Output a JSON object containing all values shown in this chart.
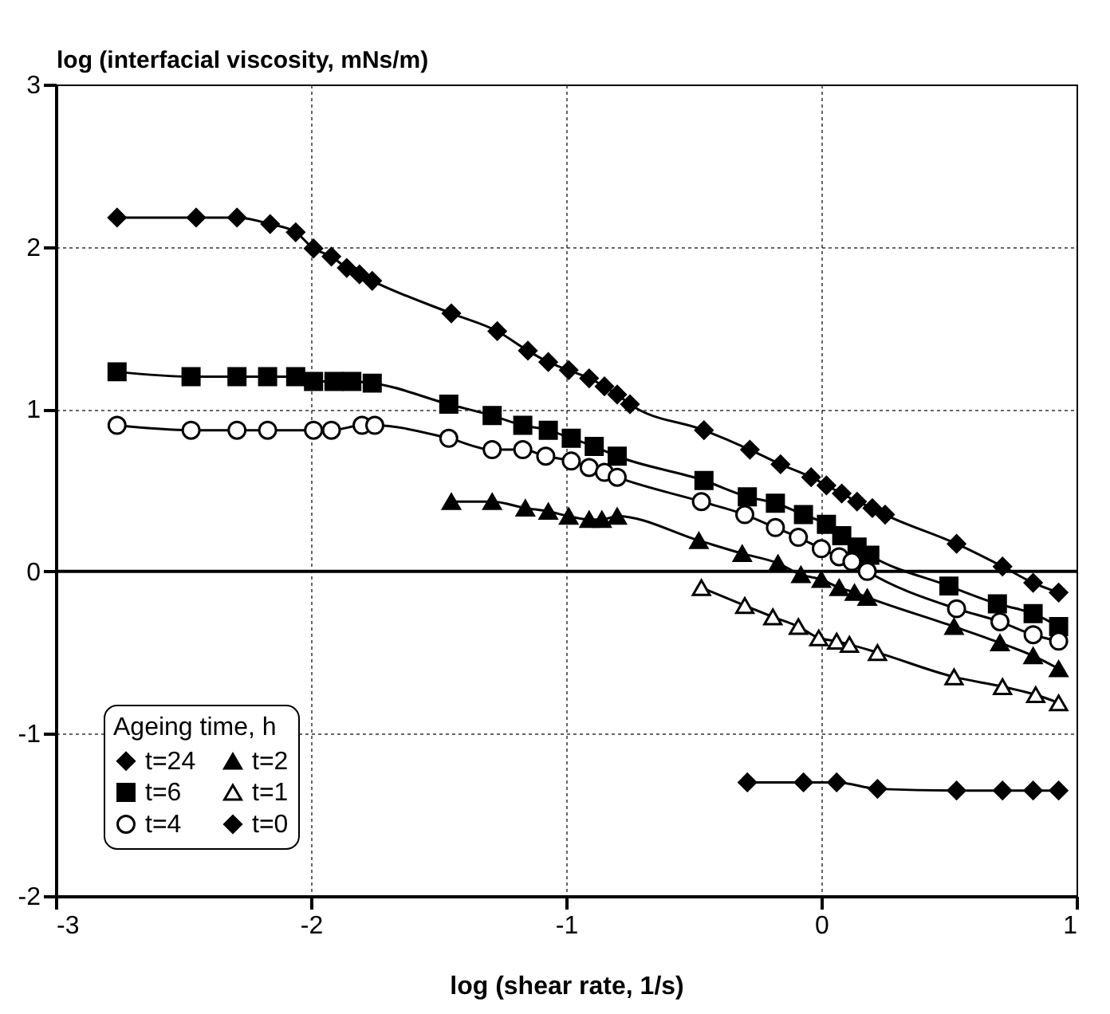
{
  "chart_data": {
    "type": "line",
    "xlabel": "log (shear rate, 1/s)",
    "ylabel": "log (interfacial viscosity, mNs/m)",
    "legend_title": "Ageing time, h",
    "xlim": [
      -3,
      1
    ],
    "xticks": [
      -3,
      -2,
      -1,
      0,
      1
    ],
    "ylim": [
      -2,
      3
    ],
    "yticks": [
      -2,
      -1,
      0,
      1,
      2,
      3
    ],
    "grid": true,
    "legend": "bottom left",
    "line_style": "solid",
    "ref_lines": [
      {
        "axis": "y",
        "value": 0,
        "color": "#000000",
        "line_style": "solid"
      }
    ],
    "series": [
      {
        "name": "t=24",
        "color": "#000000",
        "marker": "diamond",
        "x": [
          -2.76,
          -2.45,
          -2.29,
          -2.16,
          -2.06,
          -1.99,
          -1.92,
          -1.86,
          -1.81,
          -1.76,
          -1.45,
          -1.27,
          -1.15,
          -1.07,
          -0.99,
          -0.91,
          -0.85,
          -0.8,
          -0.75,
          -0.46,
          -0.28,
          -0.16,
          -0.04,
          0.02,
          0.08,
          0.14,
          0.2,
          0.25,
          0.53,
          0.71,
          0.83,
          0.93
        ],
        "values": [
          2.18,
          2.18,
          2.18,
          2.14,
          2.09,
          1.99,
          1.94,
          1.87,
          1.83,
          1.79,
          1.59,
          1.48,
          1.36,
          1.29,
          1.24,
          1.19,
          1.14,
          1.09,
          1.03,
          0.87,
          0.75,
          0.66,
          0.58,
          0.53,
          0.48,
          0.43,
          0.39,
          0.35,
          0.17,
          0.03,
          -0.07,
          -0.13
        ]
      },
      {
        "name": "t=6",
        "color": "#000000",
        "marker": "square",
        "x": [
          -2.76,
          -2.47,
          -2.29,
          -2.17,
          -2.06,
          -1.99,
          -1.91,
          -1.84,
          -1.76,
          -1.46,
          -1.29,
          -1.17,
          -1.07,
          -0.98,
          -0.89,
          -0.8,
          -0.46,
          -0.29,
          -0.18,
          -0.07,
          0.02,
          0.08,
          0.14,
          0.19,
          0.5,
          0.69,
          0.83,
          0.93
        ],
        "values": [
          1.23,
          1.2,
          1.2,
          1.2,
          1.2,
          1.17,
          1.17,
          1.17,
          1.16,
          1.03,
          0.96,
          0.9,
          0.87,
          0.82,
          0.77,
          0.71,
          0.56,
          0.46,
          0.42,
          0.35,
          0.29,
          0.22,
          0.15,
          0.1,
          -0.09,
          -0.2,
          -0.26,
          -0.34
        ]
      },
      {
        "name": "t=4",
        "color": "#000000",
        "marker": "circle",
        "x": [
          -2.76,
          -2.47,
          -2.29,
          -2.17,
          -1.99,
          -1.92,
          -1.8,
          -1.75,
          -1.46,
          -1.29,
          -1.17,
          -1.08,
          -0.98,
          -0.91,
          -0.85,
          -0.8,
          -0.47,
          -0.3,
          -0.18,
          -0.09,
          0.0,
          0.07,
          0.12,
          0.18,
          0.53,
          0.7,
          0.83,
          0.93
        ],
        "values": [
          0.9,
          0.87,
          0.87,
          0.87,
          0.87,
          0.87,
          0.9,
          0.9,
          0.82,
          0.75,
          0.75,
          0.71,
          0.68,
          0.64,
          0.61,
          0.58,
          0.43,
          0.35,
          0.27,
          0.21,
          0.14,
          0.09,
          0.06,
          0.0,
          -0.23,
          -0.31,
          -0.39,
          -0.43
        ]
      },
      {
        "name": "t=2",
        "color": "#000000",
        "marker": "triangle",
        "x": [
          -1.45,
          -1.29,
          -1.16,
          -1.07,
          -0.99,
          -0.91,
          -0.86,
          -0.8,
          -0.48,
          -0.31,
          -0.17,
          -0.08,
          0.0,
          0.07,
          0.13,
          0.18,
          0.52,
          0.7,
          0.83,
          0.93
        ],
        "values": [
          0.43,
          0.43,
          0.39,
          0.37,
          0.34,
          0.32,
          0.32,
          0.34,
          0.19,
          0.11,
          0.05,
          -0.02,
          -0.05,
          -0.1,
          -0.13,
          -0.16,
          -0.34,
          -0.44,
          -0.52,
          -0.6
        ]
      },
      {
        "name": "t=1",
        "color": "#000000",
        "marker": "triangle",
        "x": [
          -0.47,
          -0.3,
          -0.19,
          -0.09,
          -0.01,
          0.06,
          0.11,
          0.22,
          0.52,
          0.71,
          0.84,
          0.93
        ],
        "values": [
          -0.1,
          -0.21,
          -0.28,
          -0.34,
          -0.41,
          -0.43,
          -0.45,
          -0.5,
          -0.65,
          -0.71,
          -0.76,
          -0.81
        ]
      },
      {
        "name": "t=0",
        "color": "#000000",
        "marker": "diamond",
        "x": [
          -0.29,
          -0.07,
          0.06,
          0.22,
          0.53,
          0.71,
          0.83,
          0.93
        ],
        "values": [
          -1.3,
          -1.3,
          -1.3,
          -1.34,
          -1.35,
          -1.35,
          -1.35,
          -1.35
        ]
      }
    ]
  }
}
